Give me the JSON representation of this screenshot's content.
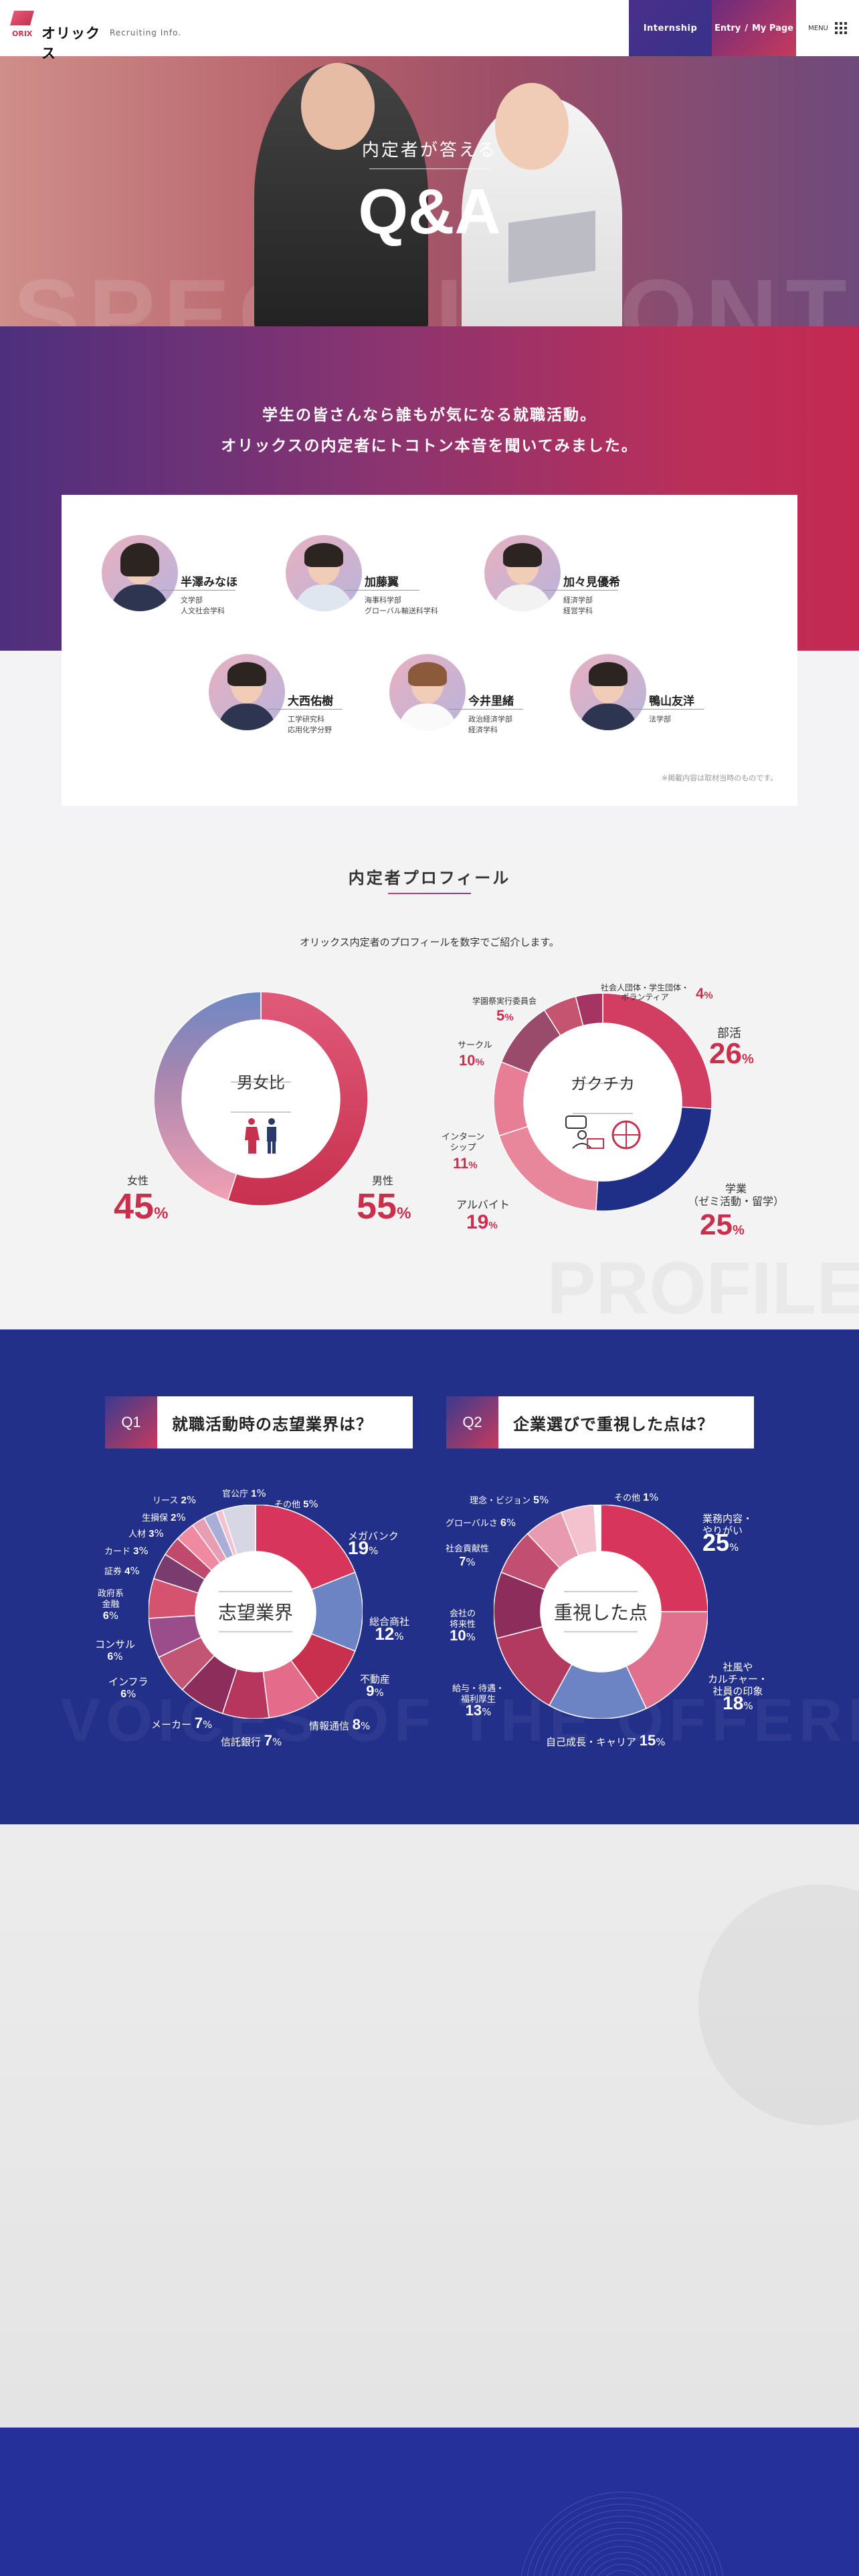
{
  "header": {
    "logo_text": "オリックス",
    "logo_brand": "ORIX",
    "recruiting": "Recruiting Info.",
    "internship": "Internship",
    "entry": "Entry",
    "mypage": "My Page",
    "menu": "MENU"
  },
  "hero": {
    "subtitle": "内定者が答える",
    "title": "Q&A",
    "bg_text": "SPECIAL CONTENTS"
  },
  "intro": {
    "line1": "学生の皆さんなら誰もが気になる就職活動。",
    "line2": "オリックスの内定者にトコトン本音を聞いてみました。",
    "note": "※掲載内容は取材当時のものです。",
    "members": [
      {
        "name": "半澤みなほ",
        "dept": "文学部\n人文社会学科"
      },
      {
        "name": "加藤翼",
        "dept": "海事科学部\nグローバル輸送科学科"
      },
      {
        "name": "加々見優希",
        "dept": "経済学部\n経営学科"
      },
      {
        "name": "大西佑樹",
        "dept": "工学研究科\n応用化学分野"
      },
      {
        "name": "今井里緒",
        "dept": "政治経済学部\n経済学科"
      },
      {
        "name": "鴨山友洋",
        "dept": "法学部"
      }
    ]
  },
  "profile": {
    "title": "内定者プロフィール",
    "lead": "オリックス内定者のプロフィールを数字でご紹介します。",
    "bg_word": "PROFILE",
    "gender": {
      "center": "男女比",
      "female_label": "女性",
      "female_value": "45",
      "male_label": "男性",
      "male_value": "55",
      "unit": "%"
    },
    "gakuchika": {
      "center": "ガクチカ",
      "items": [
        {
          "label": "部活",
          "value": "26"
        },
        {
          "label": "学業\n（ゼミ活動・留学）",
          "value": "25"
        },
        {
          "label": "アルバイト",
          "value": "19"
        },
        {
          "label": "インターン\nシップ",
          "value": "11"
        },
        {
          "label": "サークル",
          "value": "10"
        },
        {
          "label": "学園祭実行委員会",
          "value": "5"
        },
        {
          "label": "社会人団体・学生団体・\nボランティア",
          "value": "4"
        }
      ]
    }
  },
  "survey": {
    "bg_text": "VOICES OF THE OFFERER",
    "q1": {
      "num": "Q1",
      "title": "就職活動時の志望業界は？",
      "center": "志望業界",
      "items": [
        {
          "label": "メガバンク",
          "value": "19"
        },
        {
          "label": "総合商社",
          "value": "12"
        },
        {
          "label": "不動産",
          "value": "9"
        },
        {
          "label": "情報通信",
          "value": "8"
        },
        {
          "label": "信託銀行",
          "value": "7"
        },
        {
          "label": "メーカー",
          "value": "7"
        },
        {
          "label": "インフラ",
          "value": "6"
        },
        {
          "label": "コンサル",
          "value": "6"
        },
        {
          "label": "政府系\n金融",
          "value": "6"
        },
        {
          "label": "証券",
          "value": "4"
        },
        {
          "label": "カード",
          "value": "3"
        },
        {
          "label": "人材",
          "value": "3"
        },
        {
          "label": "生損保",
          "value": "2"
        },
        {
          "label": "リース",
          "value": "2"
        },
        {
          "label": "官公庁",
          "value": "1"
        },
        {
          "label": "その他",
          "value": "5"
        }
      ]
    },
    "q2": {
      "num": "Q2",
      "title": "企業選びで重視した点は？",
      "center": "重視した点",
      "items": [
        {
          "label": "業務内容・\nやりがい",
          "value": "25"
        },
        {
          "label": "社風や\nカルチャー・\n社員の印象",
          "value": "18"
        },
        {
          "label": "自己成長・キャリア",
          "value": "15"
        },
        {
          "label": "給与・待遇・\n福利厚生",
          "value": "13"
        },
        {
          "label": "会社の\n将来性",
          "value": "10"
        },
        {
          "label": "社会貢献性",
          "value": "7"
        },
        {
          "label": "グローバルさ",
          "value": "6"
        },
        {
          "label": "理念・ビジョン",
          "value": "5"
        },
        {
          "label": "その他",
          "value": "1"
        }
      ]
    }
  },
  "colors": {
    "accent": "#c8304e",
    "navy": "#23308a",
    "pink": "#e06585",
    "blue": "#5a78b8"
  }
}
